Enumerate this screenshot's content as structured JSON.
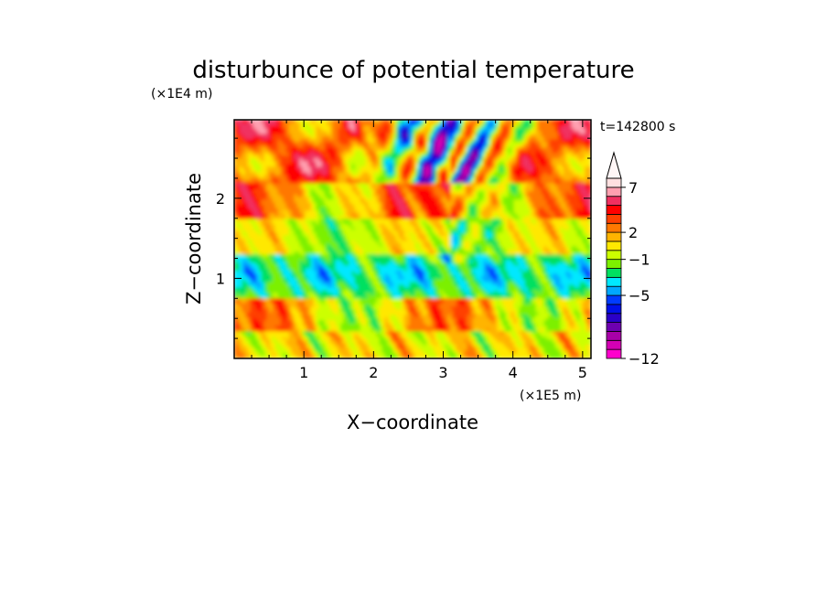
{
  "chart_data": {
    "type": "heatmap",
    "title": "disturbunce of potential temperature",
    "xlabel": "X−coordinate",
    "ylabel": "Z−coordinate",
    "x_unit": "(×1E5 m)",
    "y_unit": "(×1E4 m)",
    "annotation": "t=142800 s",
    "xlim": [
      0,
      5.12
    ],
    "ylim": [
      0,
      2.98
    ],
    "x_ticks": [
      {
        "value": 1,
        "label": "1"
      },
      {
        "value": 2,
        "label": "2"
      },
      {
        "value": 3,
        "label": "3"
      },
      {
        "value": 4,
        "label": "4"
      },
      {
        "value": 5,
        "label": "5"
      }
    ],
    "y_ticks": [
      {
        "value": 1,
        "label": "1"
      },
      {
        "value": 2,
        "label": "2"
      }
    ],
    "colorbar": {
      "levels": [
        -12,
        -11,
        -10,
        -9,
        -8,
        -7,
        -6,
        -5,
        -4,
        -3,
        -2,
        -1,
        0,
        1,
        2,
        3,
        4,
        5,
        6,
        7,
        8,
        9
      ],
      "colors": [
        "#ff00cc",
        "#d400b4",
        "#a800a8",
        "#6e00b0",
        "#2a00c8",
        "#0010e8",
        "#003cff",
        "#00a8ff",
        "#00e8ff",
        "#00e060",
        "#7cf000",
        "#ccff00",
        "#ffe800",
        "#ffb400",
        "#ff7800",
        "#ff4000",
        "#ff0000",
        "#f03060",
        "#ffa0b0",
        "#ffe0e0"
      ],
      "tick_labels": [
        {
          "value": 7,
          "label": "7"
        },
        {
          "value": 2,
          "label": "2"
        },
        {
          "value": -1,
          "label": "−1"
        },
        {
          "value": -5,
          "label": "−5"
        },
        {
          "value": -12,
          "label": "−12"
        }
      ]
    }
  }
}
